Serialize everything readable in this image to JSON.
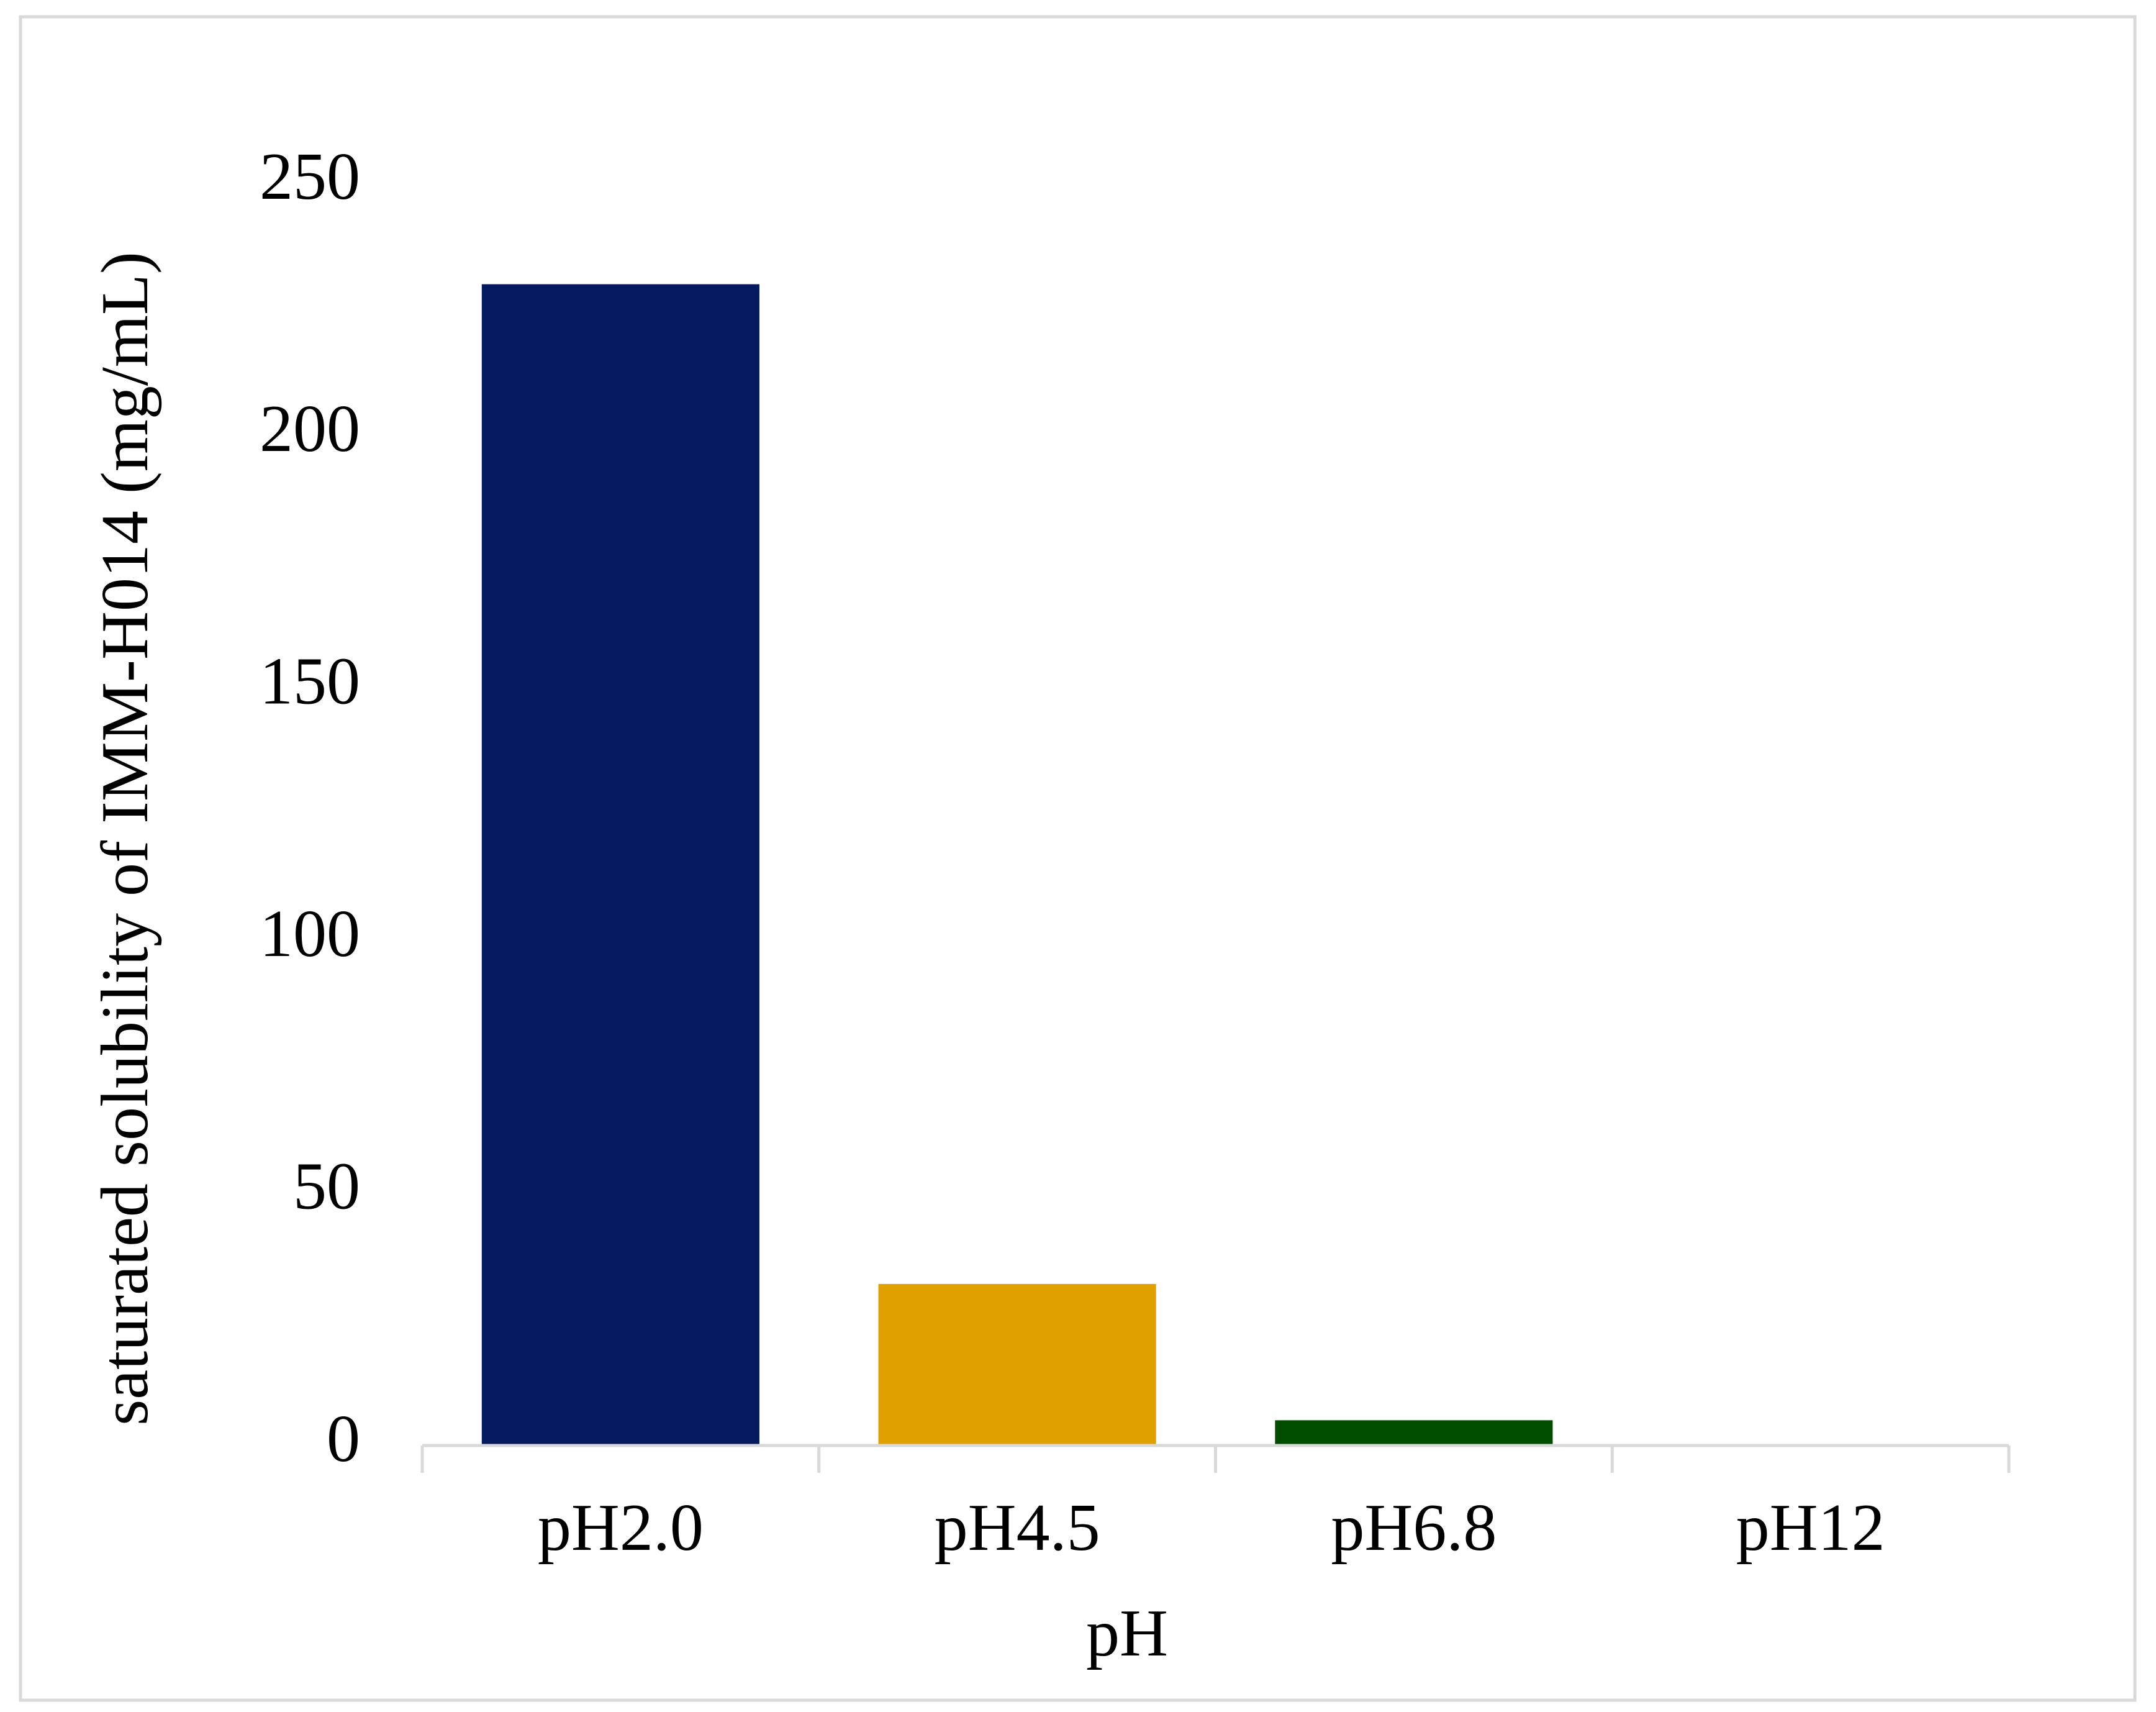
{
  "chart_data": {
    "type": "bar",
    "x_label": "pH",
    "y_label": "saturated solubility of IMM-H014 (mg/mL)",
    "categories": [
      "pH2.0",
      "pH4.5",
      "pH6.8",
      "pH12"
    ],
    "values": [
      230,
      32,
      5,
      0
    ],
    "colors": [
      "#041a5e",
      "#e0a000",
      "#004d00",
      "#7f7f7f"
    ],
    "ylim": [
      0,
      250
    ],
    "yticks": [
      0,
      50,
      100,
      150,
      200,
      250
    ],
    "grid": false
  }
}
